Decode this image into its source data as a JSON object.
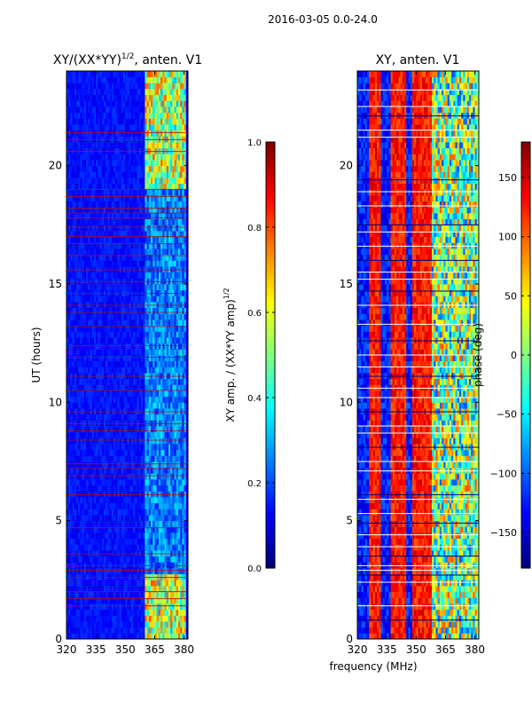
{
  "suptitle": "2016-03-05 0.0-24.0",
  "common_xlabel": "frequency (MHz)",
  "colors": {
    "red_flag_line": "#b01010",
    "white_flag_line": "#ffffff",
    "dark_flag_line": "#00007a"
  },
  "chart_data": [
    {
      "type": "heatmap",
      "title_base": "XY/(XX*YY)",
      "title_sup": "1/2",
      "title_suffix": ", anten. V1",
      "xlabel": "",
      "ylabel": "UT (hours)",
      "xlim": [
        320,
        382
      ],
      "ylim": [
        0,
        24
      ],
      "xticks": [
        320,
        335,
        350,
        365,
        380
      ],
      "yticks": [
        0,
        5,
        10,
        15,
        20
      ],
      "colormap": "jet",
      "colorbar": {
        "label_base": "XY amp. / (XX*YY amp)",
        "label_sup": "1/2",
        "range": [
          0.0,
          1.0
        ],
        "ticks": [
          "0.0",
          "0.2",
          "0.4",
          "0.6",
          "0.8",
          "1.0"
        ]
      },
      "features": {
        "low_amp_band": [
          320,
          360
        ],
        "high_amp_band": [
          360,
          381
        ],
        "strong_intervals_hours": [
          [
            0,
            2.6
          ],
          [
            19,
            24
          ]
        ],
        "flagged_rows_hours": [
          1.4,
          1.7,
          2.0,
          2.6,
          2.9,
          3.1,
          3.6,
          4.7,
          6.1,
          6.9,
          7.2,
          7.4,
          8.4,
          8.8,
          9.1,
          9.6,
          10.5,
          11.1,
          11.9,
          12.4,
          13.2,
          13.8,
          14.1,
          14.6,
          15.1,
          15.6,
          16.2,
          16.7,
          17.0,
          17.4,
          17.8,
          18.0,
          18.2,
          18.7,
          19.0,
          20.6,
          21.1,
          21.4
        ]
      }
    },
    {
      "type": "heatmap",
      "title": "XY, anten. V1",
      "xlabel": "frequency (MHz)",
      "ylabel": "",
      "xlim": [
        320,
        382
      ],
      "ylim": [
        0,
        24
      ],
      "xticks": [
        320,
        335,
        350,
        365,
        380
      ],
      "yticks": [
        0,
        5,
        10,
        15,
        20
      ],
      "colormap": "jet",
      "colorbar": {
        "label": "phase (deg)",
        "range": [
          -180,
          180
        ],
        "ticks": [
          "−150",
          "−100",
          "−50",
          "0",
          "50",
          "100",
          "150"
        ]
      },
      "features": {
        "low_phase_bands": [
          [
            320,
            326
          ],
          [
            332,
            337
          ],
          [
            345,
            348
          ]
        ],
        "high_phase_bands": [
          [
            326,
            332
          ],
          [
            337,
            345
          ],
          [
            348,
            358
          ]
        ],
        "green_band": [
          358,
          381
        ],
        "flagged_rows_hours": [
          0.8,
          1.4,
          2.4,
          2.7,
          2.9,
          3.1,
          3.5,
          3.9,
          4.4,
          4.9,
          5.3,
          5.9,
          6.1,
          7.1,
          7.5,
          8.1,
          8.7,
          9.0,
          9.6,
          10.2,
          10.6,
          11.1,
          11.5,
          12.0,
          12.6,
          13.3,
          14.1,
          14.7,
          15.2,
          15.5,
          16.0,
          16.6,
          17.2,
          17.5,
          18.3,
          18.9,
          19.4,
          21.2,
          21.5,
          22.1,
          22.5,
          23.2
        ]
      }
    }
  ]
}
